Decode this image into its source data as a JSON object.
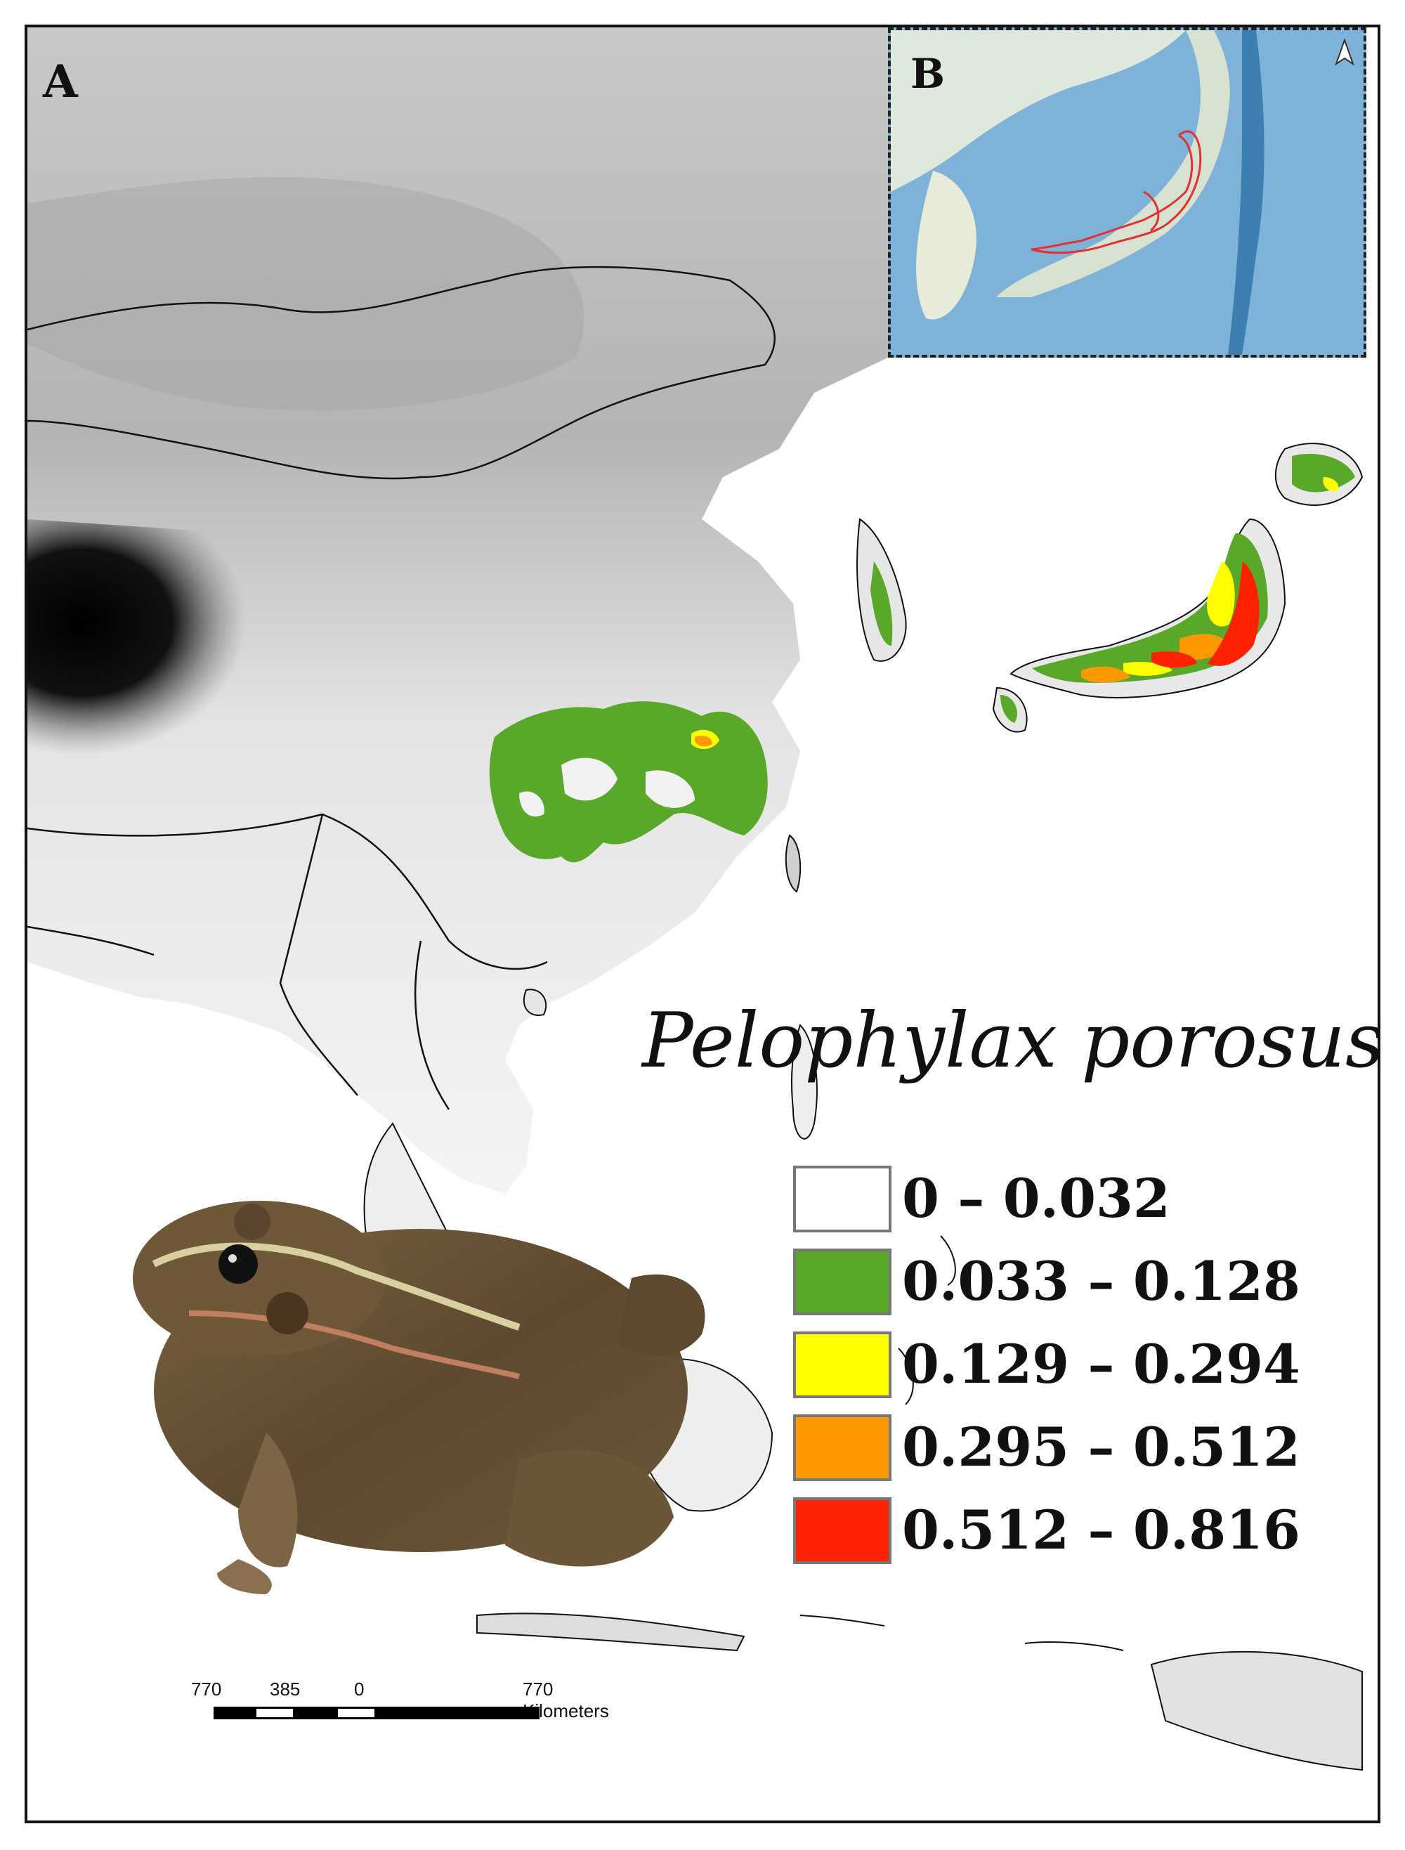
{
  "panels": {
    "a_label": "A",
    "b_label": "B"
  },
  "species_name": "Pelophylax porosus",
  "legend": {
    "items": [
      {
        "label": "0 – 0.032",
        "color": "#ffffff"
      },
      {
        "label": "0.033 – 0.128",
        "color": "#5aa82a"
      },
      {
        "label": "0.129 – 0.294",
        "color": "#ffff00"
      },
      {
        "label": "0.295 – 0.512",
        "color": "#ff9900"
      },
      {
        "label": "0.512 – 0.816",
        "color": "#ff2200"
      }
    ]
  },
  "scale_bar": {
    "ticks": [
      "770",
      "385",
      "0",
      "770 Kilometers"
    ]
  },
  "icons": {
    "north_arrow": "north-arrow-icon",
    "frog_photo": "frog-illustration"
  },
  "colors": {
    "frame": "#111111",
    "inset_sea": "#7fb2d8",
    "inset_land": "#dfe8dc",
    "inset_range_outline": "#e03030"
  }
}
